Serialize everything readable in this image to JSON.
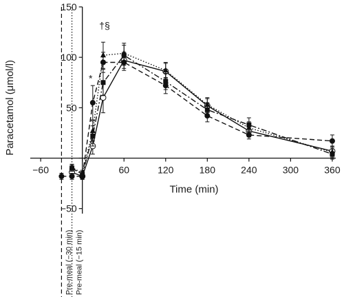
{
  "chart_data": {
    "type": "line",
    "title": "",
    "xlabel": "Time (min)",
    "ylabel": "Paracetamol (μmol/l)",
    "xlim": [
      -75,
      365
    ],
    "ylim": [
      -55,
      150
    ],
    "xticks": [
      -60,
      0,
      60,
      120,
      180,
      240,
      300,
      360
    ],
    "yticks": [
      -50,
      0,
      50,
      100,
      150
    ],
    "x_tick_labels": [
      "−60",
      "",
      "60",
      "120",
      "180",
      "240",
      "300",
      "360"
    ],
    "y_tick_labels": [
      "−50",
      "",
      "50",
      "100",
      "150"
    ],
    "vertical_lines": [
      {
        "x": -30,
        "label": "Pre-meal (−30 min)",
        "style": "dashed"
      },
      {
        "x": -15,
        "label": "Pre-meal (−15 min)",
        "style": "dotted"
      }
    ],
    "annotations": [
      {
        "x": 10,
        "y": 76,
        "text": "*"
      },
      {
        "x": 30,
        "y": 128,
        "text": "†§"
      }
    ],
    "series": [
      {
        "style": "solid",
        "marker": "circle-open",
        "x": [
          -15,
          0,
          15,
          30,
          60,
          120,
          180,
          240,
          360
        ],
        "y": [
          -14,
          -18,
          12,
          60,
          97,
          86,
          52,
          27,
          7
        ],
        "err": [
          0,
          3,
          8,
          15,
          8,
          8,
          7,
          6,
          5
        ]
      },
      {
        "style": "dashed",
        "marker": "circle-filled",
        "x": [
          -30,
          -15,
          0,
          15,
          30,
          60,
          120,
          180,
          240,
          360
        ],
        "y": [
          -18,
          -18,
          -18,
          55,
          95,
          95,
          72,
          42,
          23,
          17
        ],
        "err": [
          3,
          3,
          3,
          17,
          10,
          8,
          8,
          6,
          4,
          6
        ]
      },
      {
        "style": "dotted",
        "marker": "triangle",
        "x": [
          -15,
          0,
          15,
          30,
          60,
          120,
          180,
          240,
          360
        ],
        "y": [
          -9,
          -15,
          27,
          102,
          104,
          87,
          53,
          30,
          6
        ],
        "err": [
          3,
          3,
          10,
          13,
          10,
          8,
          7,
          6,
          5
        ]
      },
      {
        "style": "dashdot",
        "marker": "square",
        "x": [
          -15,
          0,
          15,
          30,
          60,
          120,
          180,
          240,
          360
        ],
        "y": [
          -10,
          -16,
          22,
          75,
          102,
          76,
          48,
          33,
          4
        ],
        "err": [
          3,
          3,
          10,
          13,
          10,
          8,
          7,
          7,
          5
        ]
      }
    ]
  }
}
